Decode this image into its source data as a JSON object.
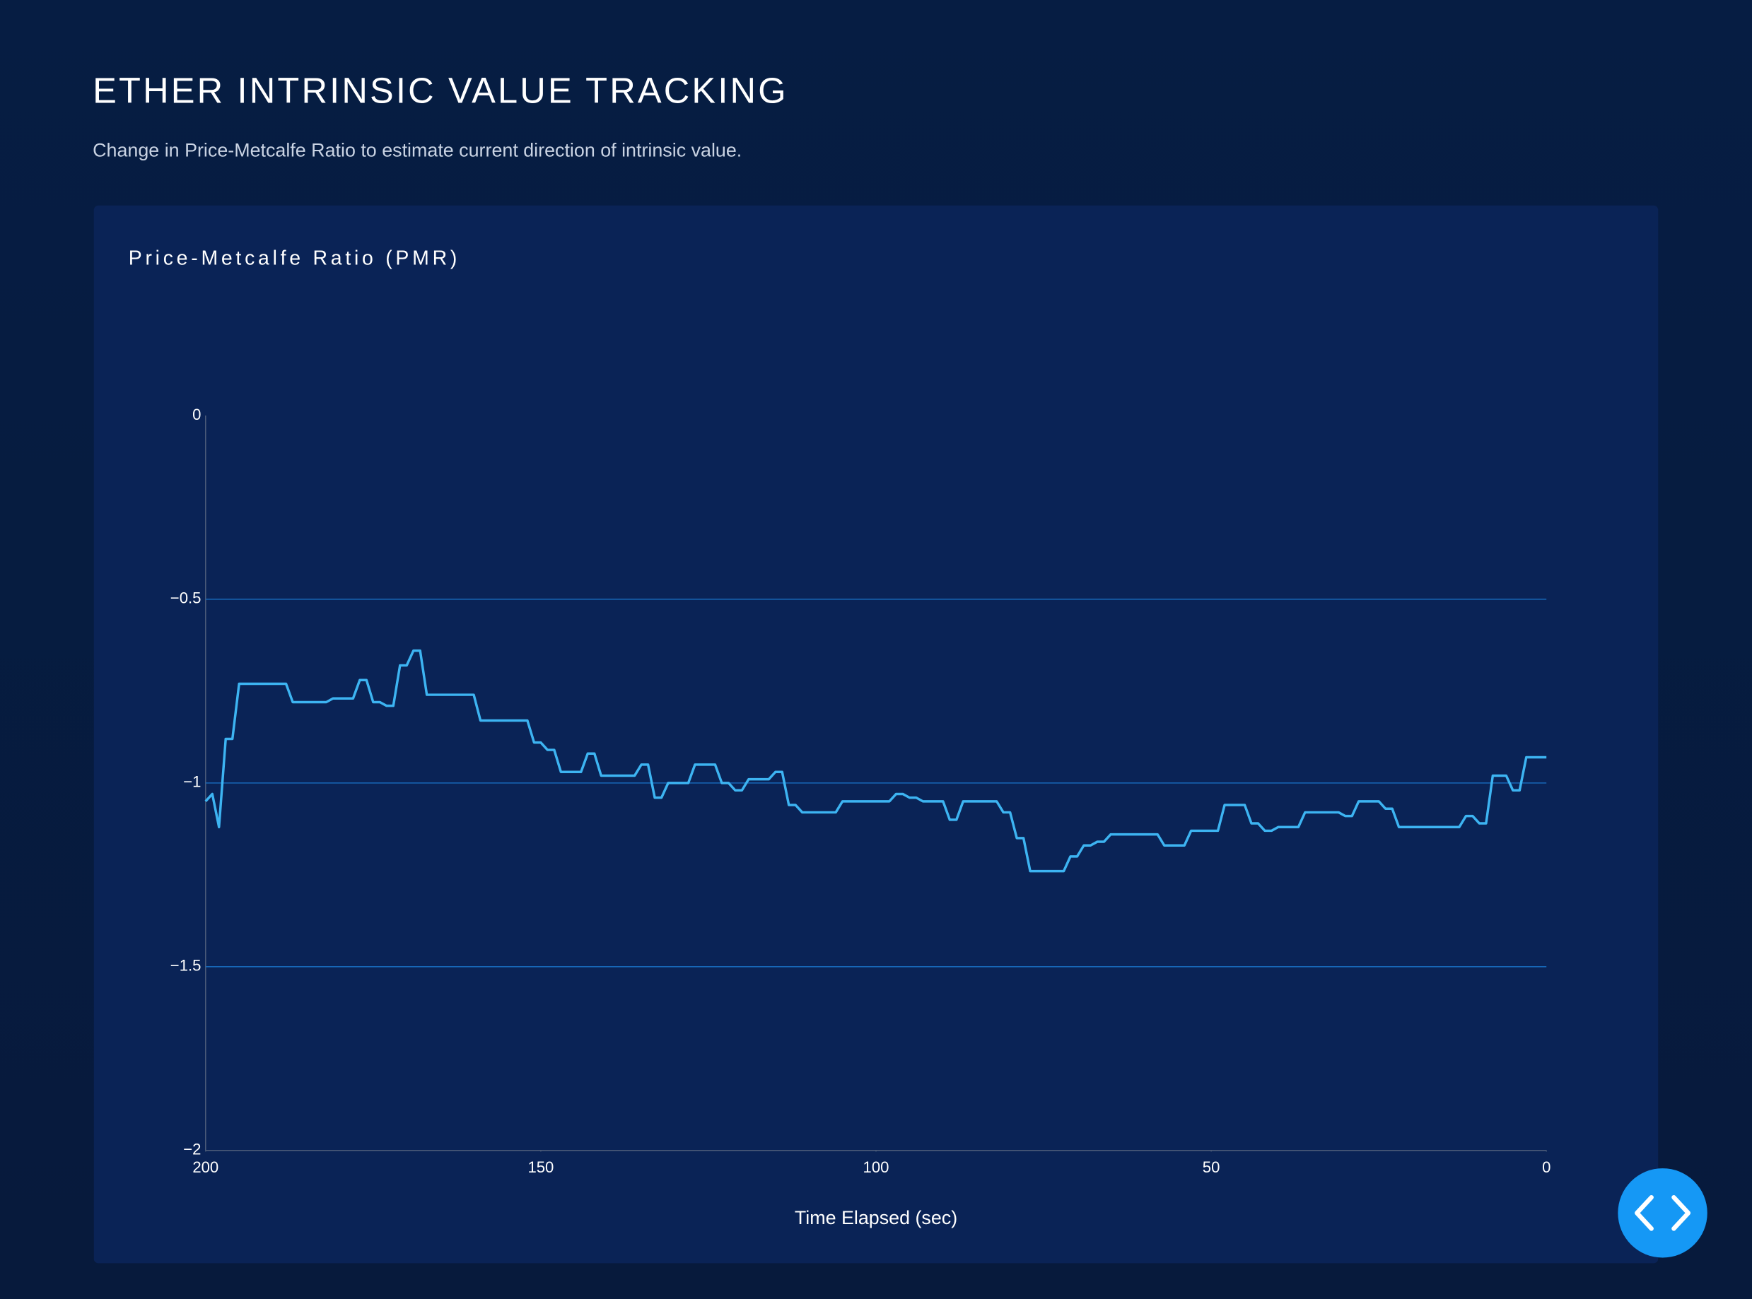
{
  "header": {
    "title": "ETHER INTRINSIC VALUE TRACKING",
    "subtitle": "Change in Price-Metcalfe Ratio to estimate current direction of intrinsic value."
  },
  "chart_data": {
    "type": "line",
    "title": "Price-Metcalfe Ratio (PMR)",
    "xlabel": "Time Elapsed (sec)",
    "color": "#3db4f2",
    "grid": true,
    "xlim": [
      200,
      0
    ],
    "xticks": [
      200,
      150,
      100,
      50,
      0
    ],
    "ylim": [
      -2,
      0
    ],
    "yticks": [
      {
        "value": -2,
        "label": "−2"
      },
      {
        "value": -1.5,
        "label": "−1.5"
      },
      {
        "value": -1,
        "label": "−1"
      },
      {
        "value": -0.5,
        "label": "−0.5"
      },
      0
    ],
    "x": [
      200,
      199,
      198,
      197,
      196,
      195,
      188,
      187,
      182,
      181,
      178,
      177,
      176,
      175,
      174,
      173,
      172,
      171,
      170,
      169,
      168,
      167,
      160,
      159,
      152,
      151,
      150,
      149,
      148,
      147,
      144,
      143,
      142,
      141,
      136,
      135,
      134,
      133,
      132,
      131,
      128,
      127,
      124,
      123,
      122,
      121,
      120,
      119,
      116,
      115,
      114,
      113,
      112,
      111,
      106,
      105,
      98,
      97,
      96,
      95,
      94,
      93,
      90,
      89,
      88,
      87,
      82,
      81,
      80,
      79,
      78,
      77,
      72,
      71,
      70,
      69,
      68,
      67,
      66,
      65,
      58,
      57,
      54,
      53,
      49,
      48,
      45,
      44,
      43,
      42,
      41,
      40,
      37,
      36,
      31,
      30,
      29,
      28,
      25,
      24,
      23,
      22,
      13,
      12,
      11,
      10,
      9,
      8,
      6,
      5,
      4,
      3,
      0
    ],
    "values": [
      -1.05,
      -1.03,
      -1.12,
      -0.88,
      -0.88,
      -0.73,
      -0.73,
      -0.78,
      -0.78,
      -0.77,
      -0.77,
      -0.72,
      -0.72,
      -0.78,
      -0.78,
      -0.79,
      -0.79,
      -0.68,
      -0.68,
      -0.64,
      -0.64,
      -0.76,
      -0.76,
      -0.83,
      -0.83,
      -0.89,
      -0.89,
      -0.91,
      -0.91,
      -0.97,
      -0.97,
      -0.92,
      -0.92,
      -0.98,
      -0.98,
      -0.95,
      -0.95,
      -1.04,
      -1.04,
      -1,
      -1,
      -0.95,
      -0.95,
      -1,
      -1,
      -1.02,
      -1.02,
      -0.99,
      -0.99,
      -0.97,
      -0.97,
      -1.06,
      -1.06,
      -1.08,
      -1.08,
      -1.05,
      -1.05,
      -1.03,
      -1.03,
      -1.04,
      -1.04,
      -1.05,
      -1.05,
      -1.1,
      -1.1,
      -1.05,
      -1.05,
      -1.08,
      -1.08,
      -1.15,
      -1.15,
      -1.24,
      -1.24,
      -1.2,
      -1.2,
      -1.17,
      -1.17,
      -1.16,
      -1.16,
      -1.14,
      -1.14,
      -1.17,
      -1.17,
      -1.13,
      -1.13,
      -1.06,
      -1.06,
      -1.11,
      -1.11,
      -1.13,
      -1.13,
      -1.12,
      -1.12,
      -1.08,
      -1.08,
      -1.09,
      -1.09,
      -1.05,
      -1.05,
      -1.07,
      -1.07,
      -1.12,
      -1.12,
      -1.09,
      -1.09,
      -1.11,
      -1.11,
      -0.98,
      -0.98,
      -1.02,
      -1.02,
      -0.93,
      -0.93
    ]
  }
}
